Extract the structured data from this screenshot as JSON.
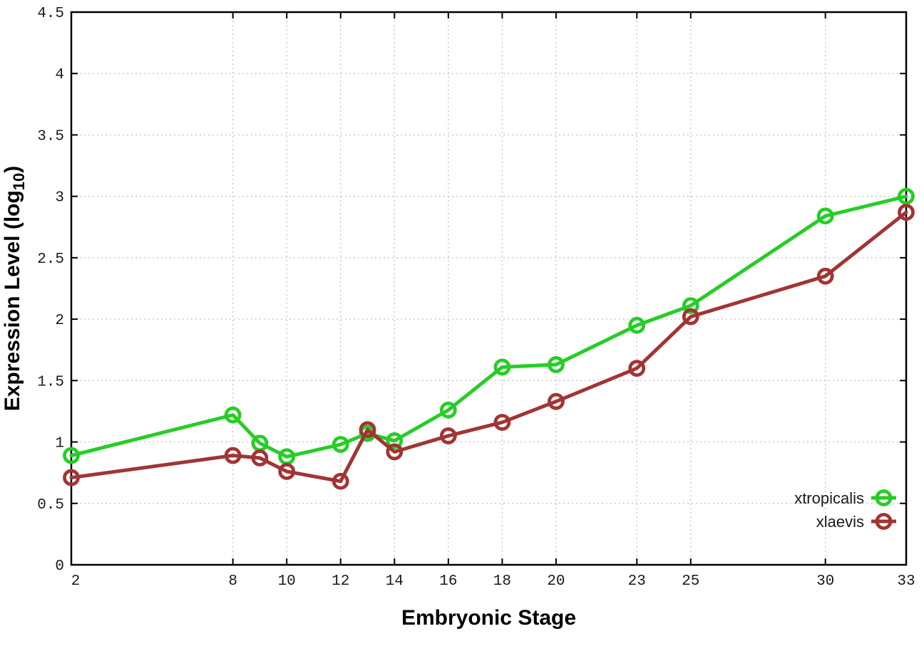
{
  "chart_data": {
    "type": "line",
    "title": "",
    "xlabel": "Embryonic Stage",
    "ylabel": {
      "prefix": "Expression Level (log",
      "subscript": "10",
      "suffix": ")"
    },
    "xlim": [
      2,
      33
    ],
    "ylim": [
      0,
      4.5
    ],
    "x_ticks": [
      2,
      8,
      10,
      12,
      14,
      16,
      18,
      20,
      23,
      25,
      30,
      33
    ],
    "y_ticks": [
      0,
      0.5,
      1,
      1.5,
      2,
      2.5,
      3,
      3.5,
      4,
      4.5
    ],
    "grid": true,
    "legend_position": "inside-bottom-right",
    "x": [
      2,
      8,
      9,
      10,
      12,
      13,
      14,
      16,
      18,
      20,
      23,
      25,
      30,
      33
    ],
    "series": [
      {
        "name": "xtropicalis",
        "color": "#26cd26",
        "values": [
          0.89,
          1.22,
          0.99,
          0.88,
          0.98,
          1.07,
          1.01,
          1.26,
          1.61,
          1.63,
          1.95,
          2.11,
          2.84,
          3.0
        ]
      },
      {
        "name": "xlaevis",
        "color": "#a23434",
        "values": [
          0.71,
          0.89,
          0.87,
          0.76,
          0.68,
          1.1,
          0.92,
          1.05,
          1.16,
          1.33,
          1.6,
          2.02,
          2.35,
          2.87
        ]
      }
    ]
  },
  "colors": {
    "background": "#ffffff",
    "axis": "#000000",
    "grid": "#c3c3c3",
    "tick_text": "#1a1a1a"
  }
}
